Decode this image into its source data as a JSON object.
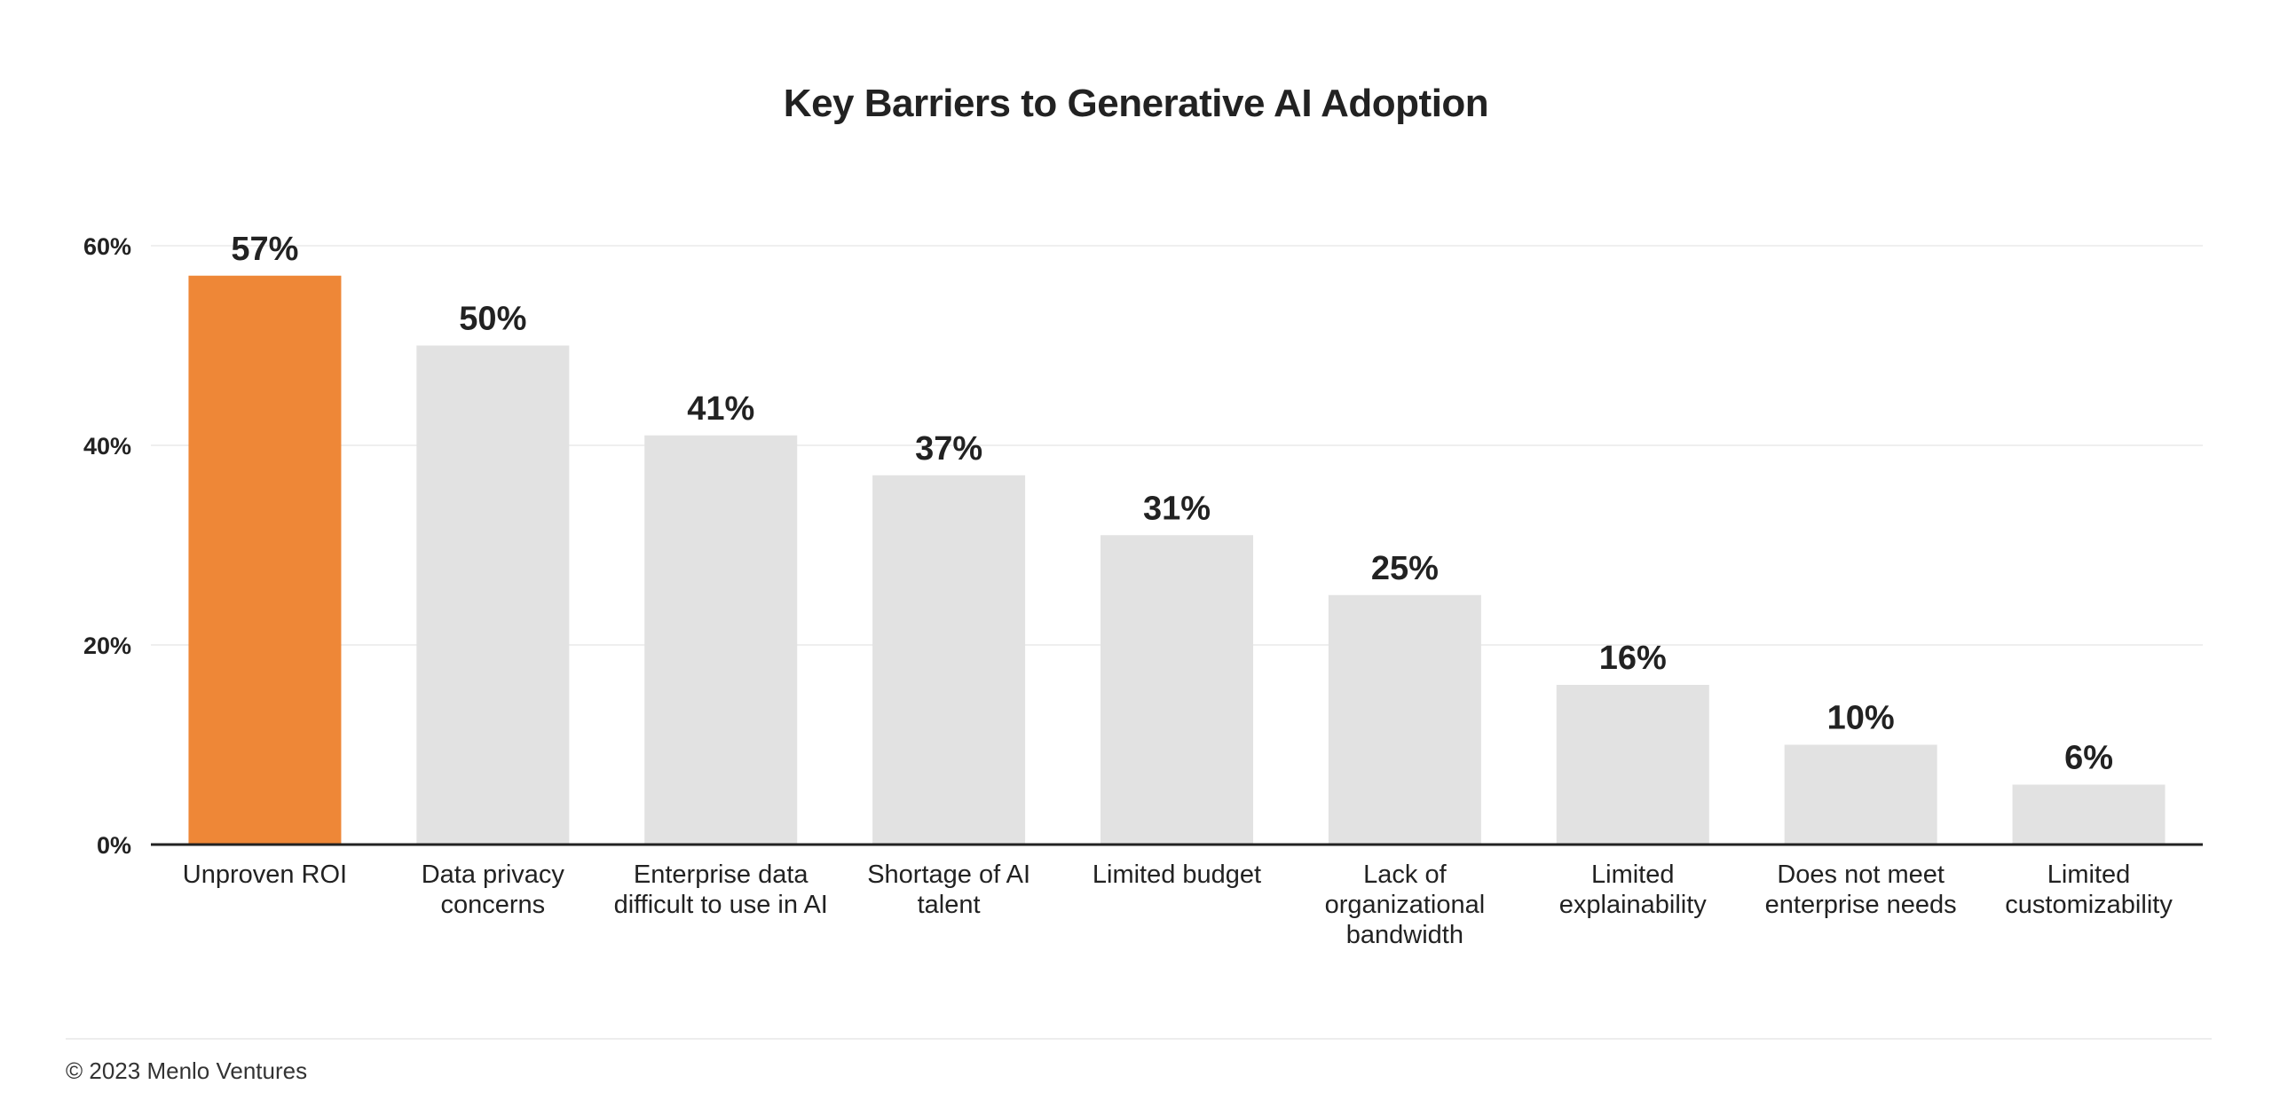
{
  "chart_data": {
    "type": "bar",
    "title": "Key Barriers to Generative AI Adoption",
    "categories": [
      "Unproven ROI",
      "Data privacy concerns",
      "Enterprise data difficult to use in AI",
      "Shortage of AI talent",
      "Limited budget",
      "Lack of organizational bandwidth",
      "Limited explainability",
      "Does not meet enterprise needs",
      "Limited customizability"
    ],
    "category_lines": [
      [
        "Unproven ROI"
      ],
      [
        "Data privacy",
        "concerns"
      ],
      [
        "Enterprise data",
        "difficult to use in AI"
      ],
      [
        "Shortage of AI",
        "talent"
      ],
      [
        "Limited budget"
      ],
      [
        "Lack of",
        "organizational",
        "bandwidth"
      ],
      [
        "Limited",
        "explainability"
      ],
      [
        "Does not meet",
        "enterprise needs"
      ],
      [
        "Limited",
        "customizability"
      ]
    ],
    "values": [
      57,
      50,
      41,
      37,
      31,
      25,
      16,
      10,
      6
    ],
    "data_labels": [
      "57%",
      "50%",
      "41%",
      "37%",
      "31%",
      "25%",
      "16%",
      "10%",
      "6%"
    ],
    "ylim": [
      0,
      60
    ],
    "yticks": [
      0,
      20,
      40,
      60
    ],
    "ytick_labels": [
      "0%",
      "20%",
      "40%",
      "60%"
    ],
    "xlabel": "",
    "ylabel": "",
    "grid": true,
    "legend": "none",
    "highlight_index": 0,
    "colors": {
      "highlight": "#ee8737",
      "bar": "#e2e2e2",
      "grid": "#efefef",
      "axis": "#222222",
      "text": "#222222"
    }
  },
  "footer": {
    "text": "© 2023 Menlo Ventures"
  }
}
